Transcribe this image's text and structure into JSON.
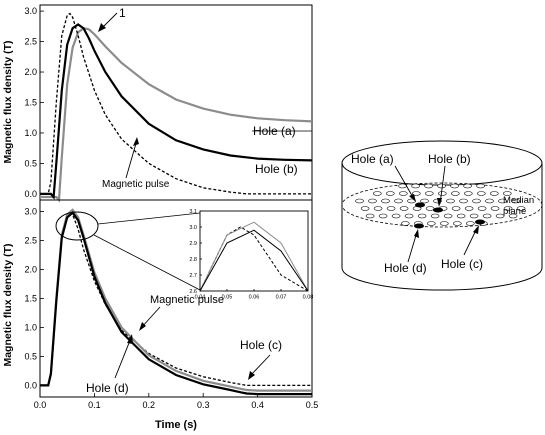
{
  "chart_data": [
    {
      "type": "line",
      "panel": "top",
      "ylabel": "Magnetic flux density (T)",
      "xlim": [
        0,
        0.5
      ],
      "ylim": [
        -0.1,
        3.1
      ],
      "yticks": [
        "0.0",
        "0.5",
        "1.0",
        "1.5",
        "2.0",
        "2.5",
        "3.0"
      ],
      "series": [
        {
          "name": "Hole (a)",
          "color": "#8c8c8c",
          "style": "solid",
          "x": [
            0,
            0.03,
            0.035,
            0.04,
            0.05,
            0.06,
            0.07,
            0.08,
            0.09,
            0.1,
            0.12,
            0.15,
            0.2,
            0.25,
            0.3,
            0.35,
            0.4,
            0.45,
            0.5
          ],
          "y": [
            -0.05,
            -0.05,
            -0.1,
            0.6,
            1.8,
            2.4,
            2.65,
            2.72,
            2.7,
            2.62,
            2.42,
            2.15,
            1.8,
            1.55,
            1.4,
            1.3,
            1.24,
            1.21,
            1.19
          ]
        },
        {
          "name": "Hole (b)",
          "color": "#000000",
          "style": "solid",
          "x": [
            0,
            0.02,
            0.025,
            0.03,
            0.04,
            0.05,
            0.06,
            0.07,
            0.08,
            0.09,
            0.1,
            0.12,
            0.15,
            0.2,
            0.25,
            0.3,
            0.35,
            0.4,
            0.45,
            0.5
          ],
          "y": [
            0,
            0,
            -0.05,
            0.5,
            1.7,
            2.45,
            2.72,
            2.78,
            2.72,
            2.55,
            2.35,
            2.0,
            1.6,
            1.15,
            0.88,
            0.73,
            0.63,
            0.58,
            0.56,
            0.55
          ]
        },
        {
          "name": "Magnetic pulse",
          "color": "#000000",
          "style": "dashed",
          "x": [
            0,
            0.015,
            0.02,
            0.03,
            0.04,
            0.05,
            0.055,
            0.06,
            0.07,
            0.08,
            0.1,
            0.12,
            0.15,
            0.2,
            0.25,
            0.3,
            0.35,
            0.38,
            0.4,
            0.45,
            0.5
          ],
          "y": [
            0,
            0,
            0.2,
            1.5,
            2.6,
            2.93,
            2.96,
            2.9,
            2.6,
            2.25,
            1.7,
            1.3,
            0.9,
            0.5,
            0.25,
            0.1,
            0.03,
            0,
            0,
            0,
            0
          ]
        }
      ],
      "annotations": [
        {
          "text": "Hole (a)"
        },
        {
          "text": "Hole (b)"
        },
        {
          "text": "Magnetic pulse"
        },
        {
          "text": "1"
        }
      ]
    },
    {
      "type": "line",
      "panel": "bottom",
      "xlabel": "Time (s)",
      "ylabel": "Magnetic flux density (T)",
      "xlim": [
        0,
        0.5
      ],
      "ylim": [
        -0.2,
        3.2
      ],
      "xticks": [
        "0.0",
        "0.1",
        "0.2",
        "0.3",
        "0.4",
        "0.5"
      ],
      "yticks": [
        "0.0",
        "0.5",
        "1.0",
        "1.5",
        "2.0",
        "2.5",
        "3.0"
      ],
      "series": [
        {
          "name": "Magnetic pulse",
          "color": "#000000",
          "style": "dashed",
          "x": [
            0,
            0.015,
            0.02,
            0.03,
            0.04,
            0.05,
            0.055,
            0.06,
            0.07,
            0.08,
            0.1,
            0.12,
            0.15,
            0.2,
            0.25,
            0.3,
            0.35,
            0.38,
            0.4,
            0.45,
            0.5
          ],
          "y": [
            0,
            0,
            0.2,
            1.5,
            2.6,
            2.95,
            3.0,
            2.95,
            2.7,
            2.35,
            1.8,
            1.4,
            0.95,
            0.55,
            0.3,
            0.15,
            0.05,
            0,
            0,
            0,
            0
          ]
        },
        {
          "name": "Hole (c)",
          "color": "#8c8c8c",
          "style": "solid",
          "x": [
            0,
            0.015,
            0.02,
            0.03,
            0.04,
            0.05,
            0.06,
            0.07,
            0.08,
            0.1,
            0.12,
            0.15,
            0.2,
            0.25,
            0.3,
            0.35,
            0.37,
            0.38,
            0.4,
            0.45,
            0.5
          ],
          "y": [
            0,
            0,
            0.2,
            1.5,
            2.6,
            2.95,
            3.03,
            2.9,
            2.6,
            1.95,
            1.5,
            1.0,
            0.52,
            0.25,
            0.08,
            -0.02,
            -0.06,
            -0.08,
            -0.09,
            -0.09,
            -0.09
          ]
        },
        {
          "name": "Hole (d)",
          "color": "#000000",
          "style": "solid",
          "x": [
            0,
            0.015,
            0.02,
            0.03,
            0.04,
            0.05,
            0.06,
            0.07,
            0.08,
            0.1,
            0.12,
            0.15,
            0.2,
            0.25,
            0.3,
            0.35,
            0.37,
            0.38,
            0.4,
            0.45,
            0.5
          ],
          "y": [
            0,
            0,
            0.2,
            1.45,
            2.55,
            2.9,
            2.98,
            2.85,
            2.55,
            1.88,
            1.42,
            0.92,
            0.45,
            0.18,
            0.02,
            -0.08,
            -0.12,
            -0.14,
            -0.15,
            -0.15,
            -0.15
          ]
        }
      ],
      "inset": {
        "xlim": [
          0.04,
          0.08
        ],
        "ylim": [
          2.6,
          3.1
        ],
        "xticks": [
          "0.04",
          "0.05",
          "0.06",
          "0.07",
          "0.08"
        ],
        "yticks": [
          "2.6",
          "2.7",
          "2.8",
          "2.9",
          "3.0",
          "3.1"
        ]
      },
      "annotations": [
        {
          "text": "Magnetic pulse"
        },
        {
          "text": "Hole (c)"
        },
        {
          "text": "Hole (d)"
        }
      ]
    }
  ],
  "diagram": {
    "labels": {
      "hole_a": "Hole (a)",
      "hole_b": "Hole (b)",
      "hole_c": "Hole (c)",
      "hole_d": "Hole (d)",
      "median_line1": "Median",
      "median_line2": "plane"
    }
  }
}
